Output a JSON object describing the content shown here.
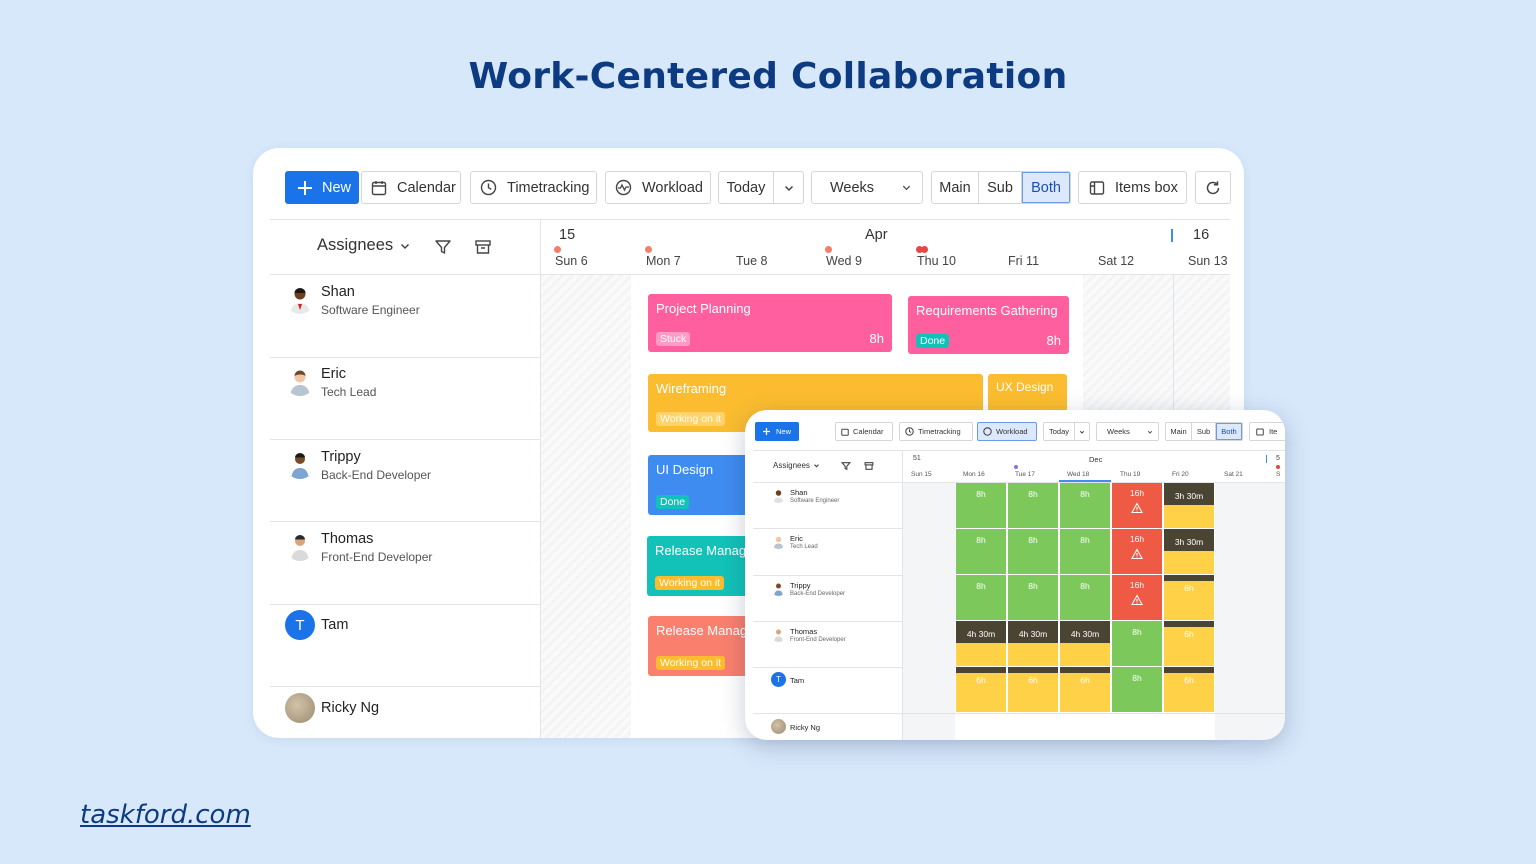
{
  "headline": "Work-Centered Collaboration",
  "footer_link": "taskford.com",
  "colors": {
    "primary": "#1a73e8",
    "pink": "#ff5f9e",
    "amber": "#fbbd2f",
    "blue": "#3f8cf0",
    "teal": "#12c2b8",
    "salmon": "#fa7f6d",
    "green": "#7cc85a",
    "red": "#ef5a45",
    "dark": "#4a4433",
    "yellow": "#ffd146"
  },
  "toolbar": {
    "new": "New",
    "calendar": "Calendar",
    "timetracking": "Timetracking",
    "workload": "Workload",
    "today": "Today",
    "weeks": "Weeks",
    "main": "Main",
    "sub": "Sub",
    "both": "Both",
    "items_box": "Items box"
  },
  "grid": {
    "assignees": "Assignees",
    "week_left": "15",
    "month": "Apr",
    "week_right": "16",
    "days": [
      "Sun 6",
      "Mon 7",
      "Tue 8",
      "Wed 9",
      "Thu 10",
      "Fri 11",
      "Sat 12",
      "Sun 13"
    ]
  },
  "people": [
    {
      "name": "Shan",
      "role": "Software Engineer"
    },
    {
      "name": "Eric",
      "role": "Tech Lead"
    },
    {
      "name": "Trippy",
      "role": "Back-End Developer"
    },
    {
      "name": "Thomas",
      "role": "Front-End Developer"
    },
    {
      "name": "Tam",
      "role": "",
      "initial": "T"
    },
    {
      "name": "Ricky Ng",
      "role": ""
    }
  ],
  "tasks": [
    {
      "title": "Project Planning",
      "status": "Stuck",
      "hours": "8h"
    },
    {
      "title": "Requirements Gathering",
      "status": "Done",
      "hours": "8h"
    },
    {
      "title": "Wireframing",
      "status": "Working on it"
    },
    {
      "title": "UX Design",
      "status": ""
    },
    {
      "title": "UI Design",
      "status": "Done"
    },
    {
      "title": "Release Manage",
      "status": "Working on it"
    },
    {
      "title": "Release Manage",
      "status": "Working on it"
    }
  ],
  "mini": {
    "toolbar": {
      "new": "New",
      "calendar": "Calendar",
      "timetracking": "Timetracking",
      "workload": "Workload",
      "today": "Today",
      "weeks": "Weeks",
      "main": "Main",
      "sub": "Sub",
      "both": "Both",
      "items": "Ite"
    },
    "assignees": "Assignees",
    "week_left": "51",
    "month": "Dec",
    "week_right": "5",
    "days": [
      "Sun 15",
      "Mon 16",
      "Tue 17",
      "Wed 18",
      "Thu 19",
      "Fri 20",
      "Sat 21",
      "S"
    ],
    "people": [
      {
        "name": "Shan",
        "role": "Software Engineer"
      },
      {
        "name": "Eric",
        "role": "Tech Lead"
      },
      {
        "name": "Trippy",
        "role": "Back-End Developer"
      },
      {
        "name": "Thomas",
        "role": "Front-End Developer"
      },
      {
        "name": "Tam",
        "role": "",
        "initial": "T"
      },
      {
        "name": "Ricky Ng",
        "role": ""
      }
    ],
    "rows": [
      [
        "8h",
        "8h",
        "8h",
        "16h",
        "3h 30m"
      ],
      [
        "8h",
        "8h",
        "8h",
        "16h",
        "3h 30m"
      ],
      [
        "8h",
        "8h",
        "8h",
        "16h",
        "6h"
      ],
      [
        "4h 30m",
        "4h 30m",
        "4h 30m",
        "8h",
        "6h"
      ],
      [
        "6h",
        "6h",
        "6h",
        "8h",
        "6h"
      ]
    ]
  }
}
